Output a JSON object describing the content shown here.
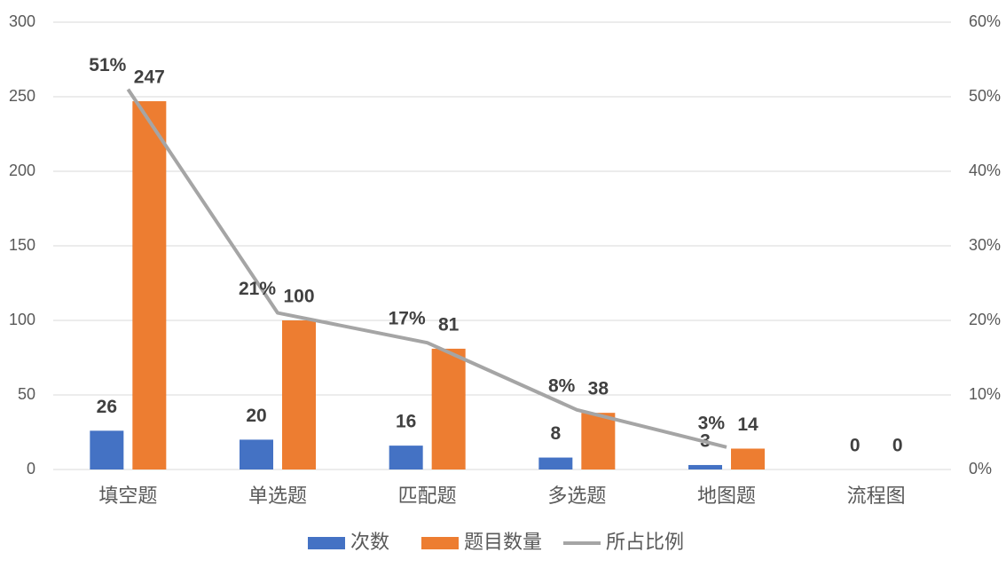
{
  "chart_data": {
    "type": "bar",
    "categories": [
      "填空题",
      "单选题",
      "匹配题",
      "多选题",
      "地图题",
      "流程图"
    ],
    "series": [
      {
        "name": "次数",
        "color": "#4472c4",
        "values": [
          26,
          20,
          16,
          8,
          3,
          0
        ]
      },
      {
        "name": "题目数量",
        "color": "#ed7d31",
        "values": [
          247,
          100,
          81,
          38,
          14,
          0
        ]
      },
      {
        "name": "所占比例",
        "color": "#a5a5a5",
        "type": "line",
        "axis": "y2",
        "values": [
          51,
          21,
          17,
          8,
          3,
          null
        ],
        "value_labels": [
          "51%",
          "21%",
          "17%",
          "8%",
          "3%",
          null
        ]
      }
    ],
    "ylim": [
      0,
      300
    ],
    "yticks": [
      0,
      50,
      100,
      150,
      200,
      250,
      300
    ],
    "y2lim": [
      0,
      60
    ],
    "y2ticks": [
      {
        "value": 0,
        "label": "0%"
      },
      {
        "value": 10,
        "label": "10%"
      },
      {
        "value": 20,
        "label": "20%"
      },
      {
        "value": 30,
        "label": "30%"
      },
      {
        "value": 40,
        "label": "40%"
      },
      {
        "value": 50,
        "label": "50%"
      },
      {
        "value": 60,
        "label": "60%"
      }
    ],
    "grid": true,
    "legend": "bottom"
  }
}
